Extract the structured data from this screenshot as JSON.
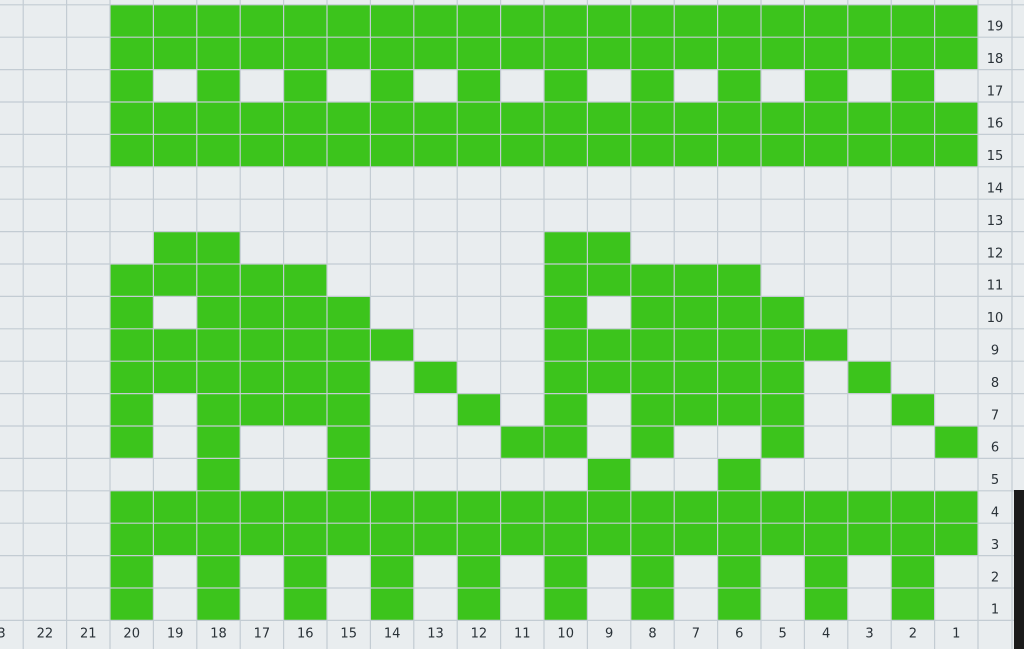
{
  "chart_grid": {
    "column_labels": [
      3,
      22,
      21,
      20,
      19,
      18,
      17,
      16,
      15,
      14,
      13,
      12,
      11,
      10,
      9,
      8,
      7,
      6,
      5,
      4,
      3,
      2,
      1
    ],
    "row_labels": [
      1,
      2,
      3,
      4,
      5,
      6,
      7,
      8,
      9,
      10,
      11,
      12,
      13,
      14,
      15,
      16,
      17,
      18,
      19
    ]
  }
}
